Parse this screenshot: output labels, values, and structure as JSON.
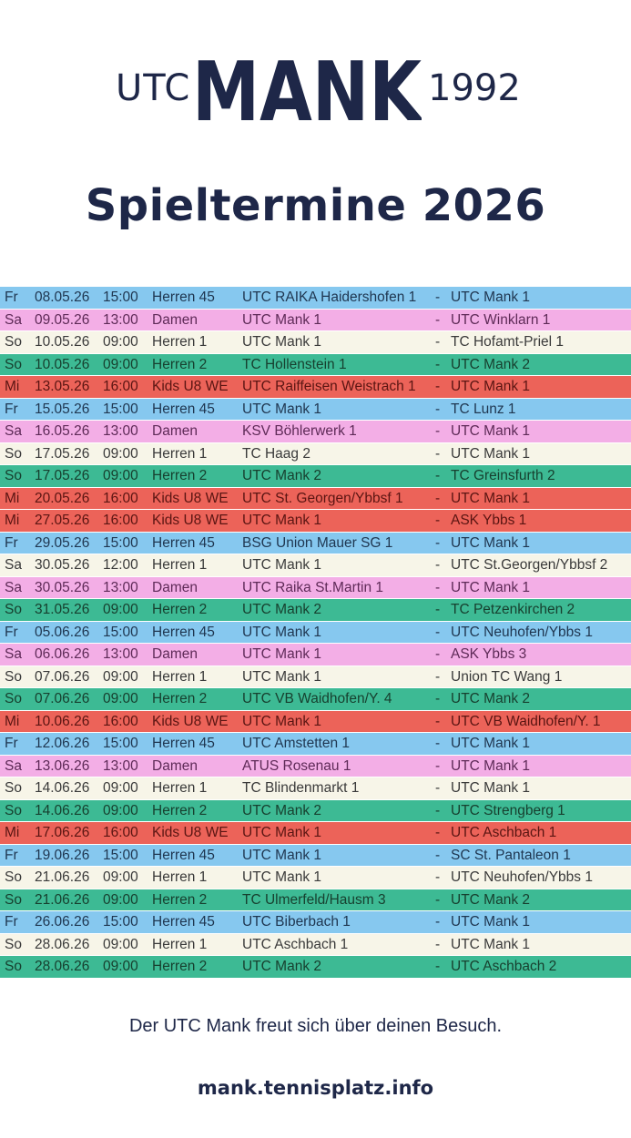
{
  "logo": {
    "left": "UTC",
    "center": "MANK",
    "right": "1992"
  },
  "title": "Spieltermine 2026",
  "colors": {
    "navy": "#1e2748",
    "Herren 45": {
      "bg": "#86c8ef",
      "fg": "#1f3650"
    },
    "Damen": {
      "bg": "#f3aee6",
      "fg": "#5e2a57"
    },
    "Herren 1": {
      "bg": "#f7f5e8",
      "fg": "#3a3a3a"
    },
    "Herren 2": {
      "bg": "#3dba94",
      "fg": "#17402f"
    },
    "Kids U8 WE": {
      "bg": "#ec6359",
      "fg": "#5a1512"
    }
  },
  "matches": [
    {
      "day": "Fr",
      "date": "08.05.26",
      "time": "15:00",
      "team": "Herren 45",
      "home": "UTC RAIKA Haidershofen 1",
      "away": "UTC Mank 1"
    },
    {
      "day": "Sa",
      "date": "09.05.26",
      "time": "13:00",
      "team": "Damen",
      "home": "UTC Mank 1",
      "away": "UTC Winklarn 1"
    },
    {
      "day": "So",
      "date": "10.05.26",
      "time": "09:00",
      "team": "Herren 1",
      "home": "UTC Mank 1",
      "away": "TC Hofamt-Priel 1"
    },
    {
      "day": "So",
      "date": "10.05.26",
      "time": "09:00",
      "team": "Herren 2",
      "home": "TC Hollenstein 1",
      "away": "UTC Mank 2"
    },
    {
      "day": "Mi",
      "date": "13.05.26",
      "time": "16:00",
      "team": "Kids U8 WE",
      "home": "UTC Raiffeisen Weistrach 1",
      "away": "UTC Mank 1"
    },
    {
      "day": "Fr",
      "date": "15.05.26",
      "time": "15:00",
      "team": "Herren 45",
      "home": "UTC Mank 1",
      "away": "TC Lunz 1"
    },
    {
      "day": "Sa",
      "date": "16.05.26",
      "time": "13:00",
      "team": "Damen",
      "home": "KSV Böhlerwerk 1",
      "away": "UTC Mank 1"
    },
    {
      "day": "So",
      "date": "17.05.26",
      "time": "09:00",
      "team": "Herren 1",
      "home": "TC Haag 2",
      "away": "UTC Mank 1"
    },
    {
      "day": "So",
      "date": "17.05.26",
      "time": "09:00",
      "team": "Herren 2",
      "home": "UTC Mank 2",
      "away": "TC Greinsfurth 2"
    },
    {
      "day": "Mi",
      "date": "20.05.26",
      "time": "16:00",
      "team": "Kids U8 WE",
      "home": "UTC St. Georgen/Ybbsf 1",
      "away": "UTC Mank 1"
    },
    {
      "day": "Mi",
      "date": "27.05.26",
      "time": "16:00",
      "team": "Kids U8 WE",
      "home": "UTC Mank 1",
      "away": "ASK Ybbs 1"
    },
    {
      "day": "Fr",
      "date": "29.05.26",
      "time": "15:00",
      "team": "Herren 45",
      "home": "BSG Union Mauer SG 1",
      "away": "UTC Mank 1"
    },
    {
      "day": "Sa",
      "date": "30.05.26",
      "time": "12:00",
      "team": "Herren 1",
      "home": "UTC Mank 1",
      "away": "UTC St.Georgen/Ybbsf 2"
    },
    {
      "day": "Sa",
      "date": "30.05.26",
      "time": "13:00",
      "team": "Damen",
      "home": "UTC Raika St.Martin 1",
      "away": "UTC Mank 1"
    },
    {
      "day": "So",
      "date": "31.05.26",
      "time": "09:00",
      "team": "Herren 2",
      "home": "UTC Mank 2",
      "away": "TC Petzenkirchen 2"
    },
    {
      "day": "Fr",
      "date": "05.06.26",
      "time": "15:00",
      "team": "Herren 45",
      "home": "UTC Mank 1",
      "away": "UTC Neuhofen/Ybbs 1"
    },
    {
      "day": "Sa",
      "date": "06.06.26",
      "time": "13:00",
      "team": "Damen",
      "home": "UTC Mank 1",
      "away": "ASK Ybbs 3"
    },
    {
      "day": "So",
      "date": "07.06.26",
      "time": "09:00",
      "team": "Herren 1",
      "home": "UTC Mank 1",
      "away": "Union TC Wang 1"
    },
    {
      "day": "So",
      "date": "07.06.26",
      "time": "09:00",
      "team": "Herren 2",
      "home": "UTC VB Waidhofen/Y. 4",
      "away": "UTC Mank 2"
    },
    {
      "day": "Mi",
      "date": "10.06.26",
      "time": "16:00",
      "team": "Kids U8 WE",
      "home": "UTC Mank 1",
      "away": "UTC VB Waidhofen/Y. 1"
    },
    {
      "day": "Fr",
      "date": "12.06.26",
      "time": "15:00",
      "team": "Herren 45",
      "home": "UTC Amstetten 1",
      "away": "UTC Mank 1"
    },
    {
      "day": "Sa",
      "date": "13.06.26",
      "time": "13:00",
      "team": "Damen",
      "home": "ATUS Rosenau 1",
      "away": "UTC Mank 1"
    },
    {
      "day": "So",
      "date": "14.06.26",
      "time": "09:00",
      "team": "Herren 1",
      "home": "TC Blindenmarkt 1",
      "away": "UTC Mank 1"
    },
    {
      "day": "So",
      "date": "14.06.26",
      "time": "09:00",
      "team": "Herren 2",
      "home": "UTC Mank 2",
      "away": "UTC Strengberg 1"
    },
    {
      "day": "Mi",
      "date": "17.06.26",
      "time": "16:00",
      "team": "Kids U8 WE",
      "home": "UTC Mank 1",
      "away": "UTC Aschbach 1"
    },
    {
      "day": "Fr",
      "date": "19.06.26",
      "time": "15:00",
      "team": "Herren 45",
      "home": "UTC Mank 1",
      "away": "SC  St. Pantaleon 1"
    },
    {
      "day": "So",
      "date": "21.06.26",
      "time": "09:00",
      "team": "Herren 1",
      "home": "UTC Mank 1",
      "away": "UTC Neuhofen/Ybbs 1"
    },
    {
      "day": "So",
      "date": "21.06.26",
      "time": "09:00",
      "team": "Herren 2",
      "home": "TC Ulmerfeld/Hausm 3",
      "away": "UTC Mank 2"
    },
    {
      "day": "Fr",
      "date": "26.06.26",
      "time": "15:00",
      "team": "Herren 45",
      "home": "UTC Biberbach 1",
      "away": "UTC Mank 1"
    },
    {
      "day": "So",
      "date": "28.06.26",
      "time": "09:00",
      "team": "Herren 1",
      "home": "UTC Aschbach 1",
      "away": "UTC Mank 1"
    },
    {
      "day": "So",
      "date": "28.06.26",
      "time": "09:00",
      "team": "Herren 2",
      "home": "UTC Mank 2",
      "away": "UTC Aschbach 2"
    }
  ],
  "separator": "-",
  "footer": "Der UTC Mank freut sich über deinen Besuch.",
  "url": "mank.tennisplatz.info"
}
